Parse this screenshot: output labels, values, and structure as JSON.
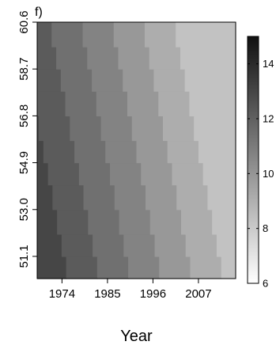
{
  "chart_data": {
    "type": "heatmap",
    "panel_label": "f)",
    "title": "",
    "xlabel": "Year",
    "ylabel": "",
    "x_ticks": [
      1974,
      1985,
      1996,
      2007
    ],
    "y_ticks": [
      "51.1",
      "53.0",
      "54.9",
      "56.8",
      "58.7",
      "60.6"
    ],
    "x_range": [
      1968,
      2016
    ],
    "y_range": [
      50.2,
      60.6
    ],
    "colorbar": {
      "ticks": [
        6,
        8,
        10,
        12,
        14
      ],
      "range": [
        6,
        15
      ],
      "colors": {
        "low": "#ffffff",
        "high": "#111111"
      }
    },
    "grid": false,
    "cells": {
      "description_note": "",
      "year_bands": [
        {
          "start": 1968.0,
          "end": 1975.0,
          "value": 13.0
        },
        {
          "start": 1975.0,
          "end": 1982.5,
          "value": 12.2
        },
        {
          "start": 1982.5,
          "end": 1990.0,
          "value": 11.4
        },
        {
          "start": 1990.0,
          "end": 1997.5,
          "value": 10.7
        },
        {
          "start": 1997.5,
          "end": 2005.0,
          "value": 9.9
        },
        {
          "start": 2005.0,
          "end": 2012.5,
          "value": 9.1
        },
        {
          "start": 2012.5,
          "end": 2016.0,
          "value": 8.3
        }
      ],
      "lat_rows": [
        50.2,
        51.1,
        52.0,
        53.0,
        54.0,
        54.9,
        55.8,
        56.8,
        57.8,
        58.7,
        59.6,
        60.6
      ],
      "band_shift_years_per_row": 1.1
    }
  }
}
